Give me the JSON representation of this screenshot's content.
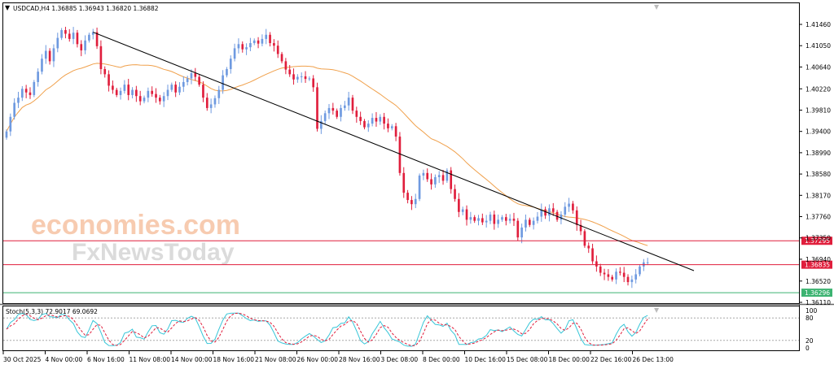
{
  "header": {
    "symbol_line": "USDCAD,H4  1.36885 1.36943 1.36820 1.36882",
    "subwindow_label": "Stoch(5,3,3) 72.9017 69.0692"
  },
  "watermark": {
    "line1": "economies.com",
    "line2": "FxNewsToday"
  },
  "colors": {
    "bull": "#6f9ae0",
    "bear": "#e01e3c",
    "ma": "#f0a04b",
    "trendline": "#000000",
    "resistance": "#e01e3c",
    "support": "#3cb371",
    "stoch_main": "#38c6d8",
    "stoch_signal": "#e01e3c"
  },
  "chart_data": [
    {
      "type": "candlestick",
      "symbol": "USDCAD",
      "timeframe": "H4",
      "ylim": [
        1.3611,
        1.4146
      ],
      "y_ticks": [
        "1.41460",
        "1.41050",
        "1.40640",
        "1.40220",
        "1.39810",
        "1.39400",
        "1.38990",
        "1.38580",
        "1.38170",
        "1.37760",
        "1.37350",
        "1.36940",
        "1.36520",
        "1.36110"
      ],
      "x_ticks": [
        "30 Oct 2025",
        "4 Nov 00:00",
        "6 Nov 16:00",
        "11 Nov 08:00",
        "14 Nov 00:00",
        "18 Nov 16:00",
        "21 Nov 08:00",
        "26 Nov 00:00",
        "28 Nov 16:00",
        "3 Dec 08:00",
        "8 Dec 00:00",
        "10 Dec 16:00",
        "15 Dec 08:00",
        "18 Dec 00:00",
        "22 Dec 16:00",
        "26 Dec 13:00"
      ],
      "closes": [
        1.394,
        1.3968,
        1.3995,
        1.4005,
        1.4022,
        1.4015,
        1.401,
        1.4035,
        1.4055,
        1.408,
        1.4095,
        1.4075,
        1.41,
        1.412,
        1.4135,
        1.4128,
        1.4118,
        1.413,
        1.4108,
        1.4096,
        1.4115,
        1.4126,
        1.4131,
        1.4104,
        1.406,
        1.405,
        1.4028,
        1.402,
        1.401,
        1.4018,
        1.403,
        1.401,
        1.402,
        1.4008,
        1.3998,
        1.4005,
        1.4018,
        1.4012,
        1.4005,
        1.3998,
        1.4008,
        1.402,
        1.403,
        1.4015,
        1.4026,
        1.4035,
        1.4042,
        1.4052,
        1.4045,
        1.403,
        1.4005,
        1.3985,
        1.3992,
        1.4004,
        1.402,
        1.4048,
        1.406,
        1.408,
        1.41,
        1.4108,
        1.4098,
        1.4102,
        1.411,
        1.4115,
        1.4109,
        1.4118,
        1.4126,
        1.411,
        1.4105,
        1.4089,
        1.4075,
        1.4059,
        1.405,
        1.404,
        1.4045,
        1.4046,
        1.4041,
        1.4042,
        1.4025,
        1.3945,
        1.396,
        1.3975,
        1.3985,
        1.398,
        1.3968,
        1.3985,
        1.399,
        1.4005,
        1.398,
        1.3968,
        1.396,
        1.3948,
        1.3955,
        1.3966,
        1.3959,
        1.3968,
        1.3955,
        1.3946,
        1.395,
        1.393,
        1.386,
        1.3822,
        1.3808,
        1.38,
        1.381,
        1.3855,
        1.386,
        1.3848,
        1.3838,
        1.3852,
        1.3856,
        1.3845,
        1.3865,
        1.3829,
        1.381,
        1.3785,
        1.379,
        1.377,
        1.3775,
        1.3768,
        1.3773,
        1.3765,
        1.3768,
        1.378,
        1.3762,
        1.377,
        1.3775,
        1.3768,
        1.3772,
        1.3768,
        1.3736,
        1.3755,
        1.377,
        1.376,
        1.3768,
        1.3776,
        1.379,
        1.3778,
        1.3792,
        1.3785,
        1.377,
        1.378,
        1.3795,
        1.3801,
        1.3788,
        1.376,
        1.3748,
        1.372,
        1.3715,
        1.369,
        1.368,
        1.3668,
        1.3665,
        1.366,
        1.3655,
        1.367,
        1.3668,
        1.366,
        1.365,
        1.3655,
        1.3665,
        1.368,
        1.3688,
        1.3688
      ]
    },
    {
      "type": "line",
      "name": "Stoch(5,3,3)",
      "ylim": [
        0,
        100
      ],
      "y_ticks": [
        "100",
        "80",
        "20",
        "0"
      ],
      "levels": [
        80,
        20
      ],
      "main_value": 72.9017,
      "signal_value": 69.0692
    }
  ],
  "levels": {
    "resistance": "1.37295",
    "current": "1.36835",
    "support": "1.36296"
  }
}
